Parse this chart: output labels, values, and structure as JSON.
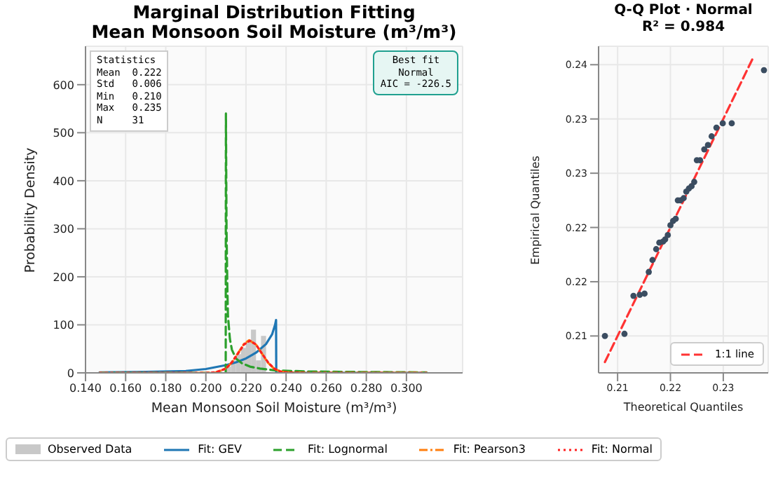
{
  "chart_data": [
    {
      "type": "line",
      "title": "Marginal Distribution Fitting",
      "subtitle": "Mean Monsoon Soil Moisture  (m³/m³)",
      "xlabel": "Mean Monsoon Soil Moisture  (m³/m³)",
      "ylabel": "Probability Density",
      "xlim": [
        0.14,
        0.328
      ],
      "xticks": [
        {
          "value": 0.14,
          "label": "0.140"
        },
        {
          "value": 0.16,
          "label": "0.160"
        },
        {
          "value": 0.18,
          "label": "0.180"
        },
        {
          "value": 0.2,
          "label": "0.200"
        },
        {
          "value": 0.22,
          "label": "0.220"
        },
        {
          "value": 0.24,
          "label": "0.240"
        },
        {
          "value": 0.26,
          "label": "0.260"
        },
        {
          "value": 0.28,
          "label": "0.280"
        },
        {
          "value": 0.3,
          "label": "0.300"
        }
      ],
      "ylim": [
        0,
        680
      ],
      "yticks": [
        0,
        100,
        200,
        300,
        400,
        500,
        600
      ],
      "grid": true,
      "legend": "bottom",
      "annotations": [
        "Statistics\nMean  0.222\nStd   0.006\nMin   0.210\nMax   0.235\nN     31",
        "Best fit\nNormal\nAIC = -226.5"
      ],
      "series": [
        {
          "type": "histogram",
          "name": "Observed Data",
          "color": "#c8c8c8",
          "bins": [
            0.21,
            0.2125,
            0.215,
            0.2175,
            0.22,
            0.2225,
            0.225,
            0.2275,
            0.23,
            0.2325
          ],
          "values": [
            13,
            26,
            39,
            52,
            65,
            90,
            26,
            77,
            0
          ]
        },
        {
          "name": "Fit: GEV",
          "color": "#1f77b4",
          "line_style": "solid",
          "x": [
            0.147,
            0.17,
            0.19,
            0.2,
            0.21,
            0.215,
            0.22,
            0.225,
            0.23,
            0.233,
            0.2345,
            0.235,
            0.2351,
            0.31
          ],
          "values": [
            1,
            2,
            4,
            8,
            16,
            22,
            30,
            42,
            60,
            80,
            100,
            110,
            0,
            0
          ]
        },
        {
          "name": "Fit: Lognormal",
          "color": "#2ca02c",
          "line_style": "dashed",
          "x": [
            0.147,
            0.2099,
            0.21,
            0.2103,
            0.2107,
            0.211,
            0.212,
            0.213,
            0.215,
            0.218,
            0.222,
            0.227,
            0.235,
            0.25,
            0.27,
            0.31
          ],
          "values": [
            0,
            0,
            540,
            300,
            180,
            120,
            70,
            48,
            30,
            20,
            13,
            9,
            5,
            3,
            2,
            1
          ]
        },
        {
          "name": "Fit: Pearson3",
          "color": "#ff7f0e",
          "line_style": "dashdot",
          "x": [
            0.147,
            0.2,
            0.205,
            0.21,
            0.213,
            0.216,
            0.219,
            0.2215,
            0.225,
            0.228,
            0.231,
            0.234,
            0.237,
            0.24,
            0.25,
            0.31
          ],
          "values": [
            0,
            0,
            1,
            9,
            22,
            41,
            60,
            68,
            59,
            40,
            21,
            9,
            3,
            1,
            0,
            0
          ]
        },
        {
          "name": "Fit: Normal",
          "color": "#ff2020",
          "line_style": "dotted",
          "x": [
            0.147,
            0.2,
            0.205,
            0.21,
            0.213,
            0.216,
            0.219,
            0.222,
            0.225,
            0.228,
            0.231,
            0.234,
            0.237,
            0.24,
            0.25,
            0.31
          ],
          "values": [
            0,
            0,
            1,
            9,
            22,
            40,
            59,
            67,
            59,
            40,
            22,
            9,
            3,
            1,
            0,
            0
          ]
        }
      ]
    },
    {
      "type": "scatter",
      "title": "Q-Q Plot  ·  Normal",
      "subtitle": "R² = 0.984",
      "xlabel": "Theoretical Quantiles",
      "ylabel": "Empirical Quantiles",
      "xlim": [
        0.2064,
        0.2385
      ],
      "xticks": [
        0.21,
        0.22,
        0.23
      ],
      "ylim": [
        0.2066,
        0.2367
      ],
      "yticks": [
        0.21,
        {
          "value": 0.215,
          "label": "0.22"
        },
        0.22,
        {
          "value": 0.225,
          "label": "0.23"
        },
        0.23,
        {
          "value": 0.235,
          "label": "0.24"
        }
      ],
      "grid": true,
      "legend": "bottom right",
      "series": [
        {
          "marker": "circle",
          "color": "#3b4d61",
          "x": [
            0.2076,
            0.2113,
            0.213,
            0.2142,
            0.2151,
            0.2159,
            0.2166,
            0.2173,
            0.2179,
            0.2186,
            0.219,
            0.2195,
            0.22,
            0.2205,
            0.221,
            0.2214,
            0.2219,
            0.2225,
            0.223,
            0.2235,
            0.224,
            0.2245,
            0.225,
            0.2256,
            0.2264,
            0.2271,
            0.2278,
            0.2287,
            0.2299,
            0.2316,
            0.2377
          ],
          "values": [
            0.21,
            0.2102,
            0.2137,
            0.2138,
            0.2139,
            0.2159,
            0.217,
            0.218,
            0.2186,
            0.2187,
            0.2189,
            0.2193,
            0.2202,
            0.2206,
            0.2208,
            0.2225,
            0.2225,
            0.2227,
            0.2233,
            0.2236,
            0.2238,
            0.2242,
            0.2262,
            0.2262,
            0.2272,
            0.2276,
            0.2284,
            0.2292,
            0.2296,
            0.2296,
            0.2345
          ]
        },
        {
          "type": "line",
          "name": "1:1 line",
          "color": "#ff3333",
          "line_style": "dashed",
          "x": [
            0.2076,
            0.2355
          ],
          "values": [
            0.2076,
            0.2355
          ]
        }
      ]
    }
  ]
}
